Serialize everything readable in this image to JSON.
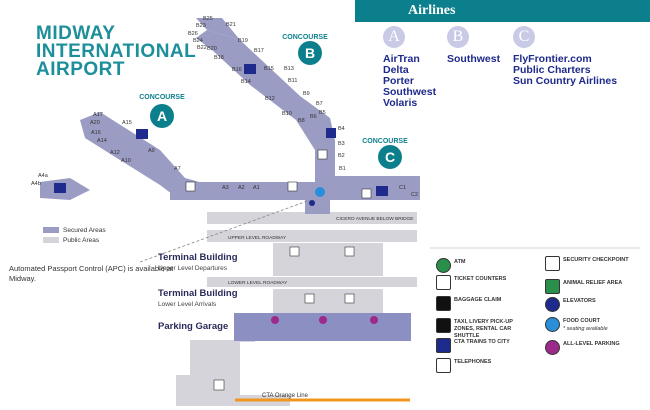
{
  "title": {
    "line1": "MIDWAY",
    "line2": "INTERNATIONAL",
    "line3": "AIRPORT"
  },
  "airlines": {
    "header": "Airlines",
    "columns": [
      {
        "letter": "A",
        "names": [
          "AirTran",
          "Delta",
          "Porter",
          "Southwest",
          "Volaris"
        ]
      },
      {
        "letter": "B",
        "names": [
          "Southwest"
        ]
      },
      {
        "letter": "C",
        "names": [
          "FlyFrontier.com",
          "Public Charters",
          "Sun Country Airlines"
        ]
      }
    ]
  },
  "concourses": [
    {
      "label": "CONCOURSE",
      "letter": "A"
    },
    {
      "label": "CONCOURSE",
      "letter": "B"
    },
    {
      "label": "CONCOURSE",
      "letter": "C"
    }
  ],
  "gates": {
    "b": [
      "B25",
      "B23",
      "B21",
      "B26",
      "B24",
      "B22",
      "B20",
      "B19",
      "B18",
      "B17",
      "B16",
      "B15",
      "B14",
      "B13",
      "B12",
      "B11",
      "B10",
      "B9",
      "B8",
      "B7",
      "B6",
      "B5",
      "B4",
      "B3",
      "B2",
      "B1"
    ],
    "a": [
      "A17",
      "A20",
      "A15",
      "A16",
      "A11",
      "A14",
      "A12",
      "A10",
      "A9",
      "A7",
      "A4a",
      "A4b",
      "A3",
      "A2",
      "A1"
    ],
    "c": [
      "C1",
      "C2"
    ]
  },
  "map_labels": {
    "cicero": "CICERO AVENUE BELOW BRIDGE",
    "upper_roadway": "UPPER LEVEL ROADWAY",
    "lower_roadway": "LOWER LEVEL ROADWAY",
    "terminal_upper_title": "Terminal Building",
    "terminal_upper_sub": "Upper Level Departures",
    "terminal_lower_title": "Terminal Building",
    "terminal_lower_sub": "Lower Level Arrivals",
    "parking": "Parking Garage",
    "cta": "CTA Orange Line"
  },
  "area_legend": {
    "secured": "Secured Areas",
    "public": "Public Areas"
  },
  "apc_note": "Automated Passport Control (APC) is available at Midway.",
  "legend": [
    {
      "icon": "atm-icon",
      "label": "ATM"
    },
    {
      "icon": "ticket-counter-icon",
      "label": "TICKET COUNTERS"
    },
    {
      "icon": "baggage-claim-icon",
      "label": "BAGGAGE CLAIM"
    },
    {
      "icon": "taxi-icon",
      "label": "TAXI, LIVERY PICK-UP ZONES, RENTAL CAR SHUTTLE"
    },
    {
      "icon": "cta-train-icon",
      "label": "CTA TRAINS TO CITY"
    },
    {
      "icon": "telephone-icon",
      "label": "TELEPHONES"
    },
    {
      "icon": "security-checkpoint-icon",
      "label": "SECURITY CHECKPOINT"
    },
    {
      "icon": "animal-relief-icon",
      "label": "ANIMAL RELIEF AREA"
    },
    {
      "icon": "elevator-icon",
      "label": "ELEVATORS"
    },
    {
      "icon": "food-court-icon",
      "label": "FOOD COURT",
      "note": "* seating available"
    },
    {
      "icon": "parking-icon",
      "label": "ALL-LEVEL PARKING"
    }
  ],
  "colors": {
    "teal": "#0b7f8c",
    "secured": "#9a9cc4",
    "public": "#d4d4da",
    "parking": "#8c8fc2",
    "navy": "#1e2a8c",
    "orange": "#f0961e"
  }
}
